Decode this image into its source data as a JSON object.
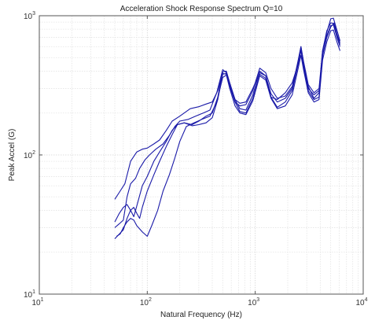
{
  "chart_data": {
    "type": "line",
    "title": "Acceleration Shock Response Spectrum Q=10",
    "xlabel": "Natural Frequency (Hz)",
    "ylabel": "Peak Accel (G)",
    "xscale": "log",
    "yscale": "log",
    "xlim": [
      10,
      10000
    ],
    "ylim": [
      10,
      1000
    ],
    "grid": true,
    "xticks": [
      {
        "base": "10",
        "exp": "1"
      },
      {
        "base": "10",
        "exp": "2"
      },
      {
        "base": "10",
        "exp": "3"
      },
      {
        "base": "10",
        "exp": "4"
      }
    ],
    "yticks": [
      {
        "base": "10",
        "exp": "1"
      },
      {
        "base": "10",
        "exp": "2"
      },
      {
        "base": "10",
        "exp": "3"
      }
    ],
    "line_color": "#1a1aa8",
    "series": [
      {
        "points": [
          [
            50,
            48
          ],
          [
            56,
            55
          ],
          [
            62,
            62
          ],
          [
            70,
            90
          ],
          [
            80,
            105
          ],
          [
            90,
            110
          ],
          [
            100,
            112
          ],
          [
            115,
            120
          ],
          [
            130,
            128
          ],
          [
            150,
            150
          ],
          [
            170,
            175
          ],
          [
            200,
            190
          ],
          [
            250,
            215
          ],
          [
            300,
            222
          ],
          [
            350,
            232
          ],
          [
            400,
            240
          ],
          [
            450,
            290
          ],
          [
            500,
            385
          ],
          [
            540,
            380
          ],
          [
            580,
            320
          ],
          [
            650,
            250
          ],
          [
            720,
            235
          ],
          [
            820,
            240
          ],
          [
            950,
            300
          ],
          [
            1100,
            390
          ],
          [
            1250,
            370
          ],
          [
            1400,
            260
          ],
          [
            1600,
            250
          ],
          [
            1900,
            280
          ],
          [
            2200,
            330
          ],
          [
            2500,
            450
          ],
          [
            2650,
            560
          ],
          [
            2800,
            450
          ],
          [
            3100,
            300
          ],
          [
            3500,
            270
          ],
          [
            3900,
            290
          ],
          [
            4200,
            520
          ],
          [
            4600,
            700
          ],
          [
            5000,
            830
          ],
          [
            5400,
            890
          ],
          [
            5800,
            700
          ],
          [
            6100,
            620
          ]
        ]
      },
      {
        "points": [
          [
            50,
            30
          ],
          [
            55,
            32
          ],
          [
            60,
            34
          ],
          [
            65,
            50
          ],
          [
            70,
            62
          ],
          [
            78,
            68
          ],
          [
            85,
            80
          ],
          [
            95,
            92
          ],
          [
            105,
            100
          ],
          [
            120,
            110
          ],
          [
            140,
            120
          ],
          [
            160,
            138
          ],
          [
            180,
            160
          ],
          [
            200,
            175
          ],
          [
            240,
            180
          ],
          [
            280,
            190
          ],
          [
            330,
            200
          ],
          [
            380,
            210
          ],
          [
            440,
            280
          ],
          [
            500,
            410
          ],
          [
            540,
            390
          ],
          [
            580,
            310
          ],
          [
            650,
            240
          ],
          [
            720,
            225
          ],
          [
            820,
            230
          ],
          [
            950,
            290
          ],
          [
            1100,
            420
          ],
          [
            1250,
            390
          ],
          [
            1400,
            300
          ],
          [
            1600,
            255
          ],
          [
            1900,
            265
          ],
          [
            2200,
            310
          ],
          [
            2500,
            470
          ],
          [
            2650,
            600
          ],
          [
            2800,
            470
          ],
          [
            3100,
            320
          ],
          [
            3500,
            280
          ],
          [
            3900,
            300
          ],
          [
            4200,
            560
          ],
          [
            4600,
            760
          ],
          [
            5000,
            950
          ],
          [
            5300,
            960
          ],
          [
            5700,
            790
          ],
          [
            6100,
            660
          ]
        ]
      },
      {
        "points": [
          [
            50,
            33
          ],
          [
            55,
            38
          ],
          [
            60,
            42
          ],
          [
            65,
            44
          ],
          [
            70,
            40
          ],
          [
            75,
            36
          ],
          [
            80,
            43
          ],
          [
            90,
            60
          ],
          [
            100,
            70
          ],
          [
            115,
            90
          ],
          [
            130,
            105
          ],
          [
            150,
            125
          ],
          [
            170,
            150
          ],
          [
            190,
            165
          ],
          [
            220,
            170
          ],
          [
            260,
            165
          ],
          [
            300,
            175
          ],
          [
            350,
            190
          ],
          [
            400,
            200
          ],
          [
            450,
            260
          ],
          [
            500,
            395
          ],
          [
            540,
            400
          ],
          [
            580,
            330
          ],
          [
            650,
            250
          ],
          [
            720,
            215
          ],
          [
            820,
            210
          ],
          [
            950,
            270
          ],
          [
            1100,
            400
          ],
          [
            1250,
            370
          ],
          [
            1400,
            275
          ],
          [
            1600,
            240
          ],
          [
            1900,
            255
          ],
          [
            2200,
            300
          ],
          [
            2500,
            480
          ],
          [
            2650,
            600
          ],
          [
            2800,
            460
          ],
          [
            3100,
            310
          ],
          [
            3500,
            255
          ],
          [
            3900,
            280
          ],
          [
            4200,
            560
          ],
          [
            4600,
            780
          ],
          [
            5000,
            890
          ],
          [
            5300,
            880
          ],
          [
            5700,
            740
          ],
          [
            6100,
            640
          ]
        ]
      },
      {
        "points": [
          [
            50,
            25
          ],
          [
            55,
            27
          ],
          [
            60,
            29
          ],
          [
            65,
            35
          ],
          [
            70,
            40
          ],
          [
            75,
            42
          ],
          [
            80,
            38
          ],
          [
            85,
            35
          ],
          [
            90,
            42
          ],
          [
            100,
            55
          ],
          [
            115,
            72
          ],
          [
            130,
            90
          ],
          [
            150,
            115
          ],
          [
            170,
            140
          ],
          [
            190,
            165
          ],
          [
            220,
            170
          ],
          [
            260,
            162
          ],
          [
            300,
            165
          ],
          [
            350,
            170
          ],
          [
            400,
            185
          ],
          [
            450,
            250
          ],
          [
            500,
            380
          ],
          [
            540,
            385
          ],
          [
            580,
            315
          ],
          [
            650,
            240
          ],
          [
            720,
            205
          ],
          [
            820,
            200
          ],
          [
            950,
            255
          ],
          [
            1100,
            380
          ],
          [
            1250,
            355
          ],
          [
            1400,
            260
          ],
          [
            1600,
            220
          ],
          [
            1900,
            240
          ],
          [
            2200,
            290
          ],
          [
            2500,
            450
          ],
          [
            2650,
            570
          ],
          [
            2800,
            430
          ],
          [
            3100,
            290
          ],
          [
            3500,
            250
          ],
          [
            3900,
            260
          ],
          [
            4200,
            520
          ],
          [
            4600,
            720
          ],
          [
            5000,
            850
          ],
          [
            5300,
            860
          ],
          [
            5700,
            700
          ],
          [
            6100,
            600
          ]
        ]
      },
      {
        "points": [
          [
            52,
            26
          ],
          [
            56,
            27
          ],
          [
            60,
            30
          ],
          [
            65,
            33
          ],
          [
            70,
            35
          ],
          [
            75,
            34
          ],
          [
            80,
            31
          ],
          [
            90,
            28
          ],
          [
            100,
            26
          ],
          [
            110,
            31
          ],
          [
            125,
            40
          ],
          [
            140,
            55
          ],
          [
            160,
            72
          ],
          [
            180,
            95
          ],
          [
            200,
            125
          ],
          [
            230,
            160
          ],
          [
            270,
            170
          ],
          [
            320,
            180
          ],
          [
            380,
            190
          ],
          [
            440,
            240
          ],
          [
            500,
            360
          ],
          [
            540,
            375
          ],
          [
            580,
            300
          ],
          [
            650,
            225
          ],
          [
            720,
            200
          ],
          [
            820,
            195
          ],
          [
            950,
            245
          ],
          [
            1100,
            370
          ],
          [
            1250,
            345
          ],
          [
            1400,
            255
          ],
          [
            1600,
            215
          ],
          [
            1900,
            225
          ],
          [
            2200,
            270
          ],
          [
            2500,
            420
          ],
          [
            2650,
            520
          ],
          [
            2800,
            410
          ],
          [
            3100,
            280
          ],
          [
            3500,
            240
          ],
          [
            3900,
            250
          ],
          [
            4200,
            480
          ],
          [
            4600,
            650
          ],
          [
            5000,
            780
          ],
          [
            5300,
            790
          ],
          [
            5700,
            650
          ],
          [
            6100,
            560
          ]
        ]
      }
    ]
  }
}
